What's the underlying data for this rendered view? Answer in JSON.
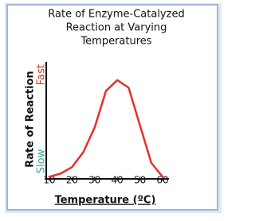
{
  "chart_data": {
    "type": "line",
    "title": [
      "Rate of Enzyme-Catalyzed",
      "Reaction at Varying",
      "Temperatures"
    ],
    "x_label": "Temperature (ºC)",
    "y_label": "Rate of Reaction",
    "y_axis_high": "Fast",
    "y_axis_low": "Slow",
    "x": [
      10,
      15,
      20,
      25,
      30,
      35,
      40,
      45,
      50,
      55,
      60
    ],
    "series": [
      {
        "color": "#e8302a",
        "values": [
          2,
          5,
          11,
          25,
          48,
          82,
          92,
          85,
          50,
          15,
          2
        ]
      }
    ],
    "xlim": [
      10,
      60
    ],
    "xticks": [
      10,
      20,
      30,
      40,
      50,
      60
    ],
    "ylim": [
      0,
      100
    ]
  }
}
